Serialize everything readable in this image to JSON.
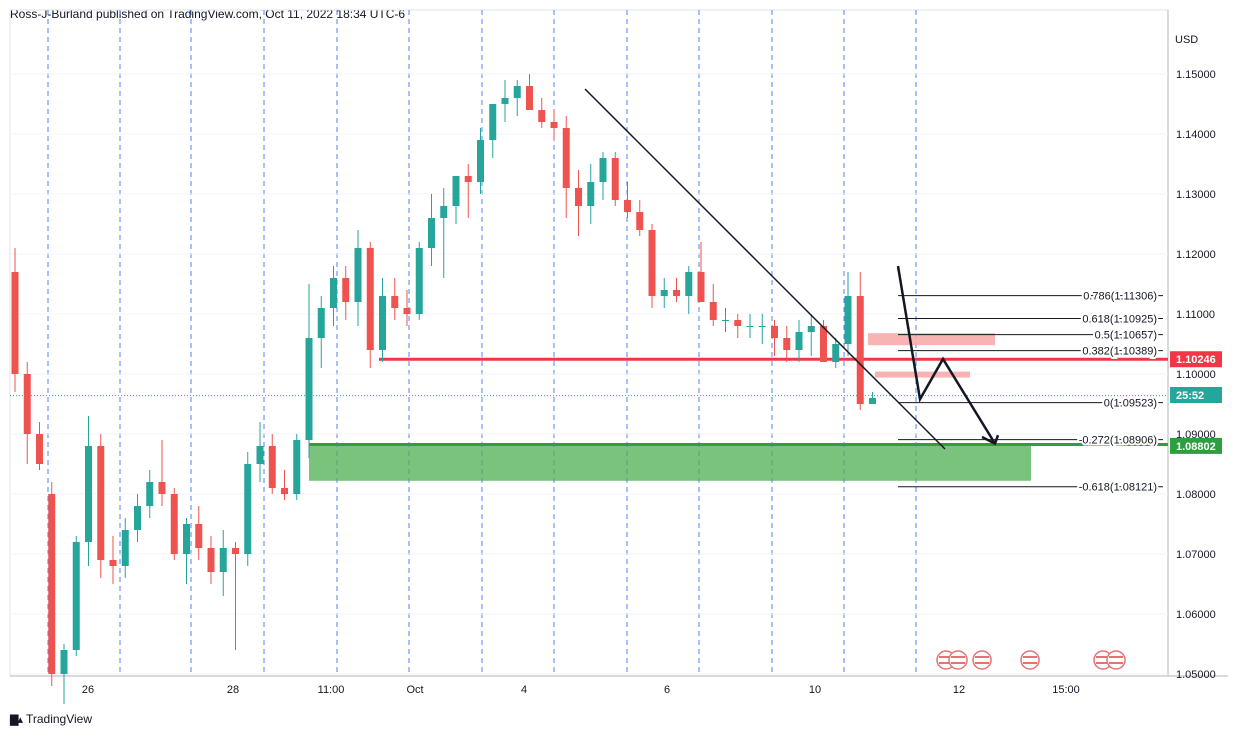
{
  "header": {
    "title": "Ross-J-Burland published on TradingView.com, Oct 11, 2022 18:34 UTC-6"
  },
  "footer": {
    "brand": "TradingView"
  },
  "colors": {
    "up": "#26a69a",
    "down": "#ef5350",
    "support": "#4caf50",
    "resistance": "#f23645",
    "grid": "#2962ff"
  },
  "chart_data": {
    "type": "candlestick",
    "symbol_unit": "USD",
    "ylim": [
      1.05,
      1.155
    ],
    "y_ticks": [
      "1.15000",
      "1.14000",
      "1.13000",
      "1.12000",
      "1.11000",
      "1.10000",
      "1.09000",
      "1.08000",
      "1.07000",
      "1.06000",
      "1.05000"
    ],
    "x_ticks": [
      "26",
      "28",
      "11:00",
      "Oct",
      "4",
      "6",
      "10",
      "12",
      "15:00"
    ],
    "price_labels": [
      {
        "text": "1.10246",
        "value": 1.10246,
        "color": "#f23645"
      },
      {
        "text": "25:52",
        "value": 1.0965,
        "color": "#26a69a"
      },
      {
        "text": "1.08802",
        "value": 1.08802,
        "color": "#2e9e3e"
      }
    ],
    "fib_levels": [
      {
        "label": "0.786(1.11306)",
        "value": 1.11306
      },
      {
        "label": "0.618(1.10925)",
        "value": 1.10925
      },
      {
        "label": "0.5(1.10657)",
        "value": 1.10657
      },
      {
        "label": "0.382(1.10389)",
        "value": 1.10389
      },
      {
        "label": "0(1.09523)",
        "value": 1.09523
      },
      {
        "label": "-0.272(1.08906)",
        "value": 1.08906
      },
      {
        "label": "-0.618(1.08121)",
        "value": 1.08121
      }
    ],
    "support_zone": [
      1.0822,
      1.0882
    ],
    "resistance_level": 1.10246,
    "candles": [
      [
        1.117,
        1.121,
        1.097,
        1.1
      ],
      [
        1.1,
        1.102,
        1.085,
        1.09
      ],
      [
        1.09,
        1.092,
        1.084,
        1.085
      ],
      [
        1.08,
        1.082,
        1.048,
        1.05
      ],
      [
        1.05,
        1.055,
        1.045,
        1.054
      ],
      [
        1.054,
        1.073,
        1.053,
        1.072
      ],
      [
        1.072,
        1.093,
        1.068,
        1.088
      ],
      [
        1.088,
        1.09,
        1.066,
        1.069
      ],
      [
        1.069,
        1.073,
        1.065,
        1.068
      ],
      [
        1.068,
        1.076,
        1.066,
        1.074
      ],
      [
        1.074,
        1.08,
        1.072,
        1.078
      ],
      [
        1.078,
        1.084,
        1.076,
        1.082
      ],
      [
        1.082,
        1.089,
        1.078,
        1.08
      ],
      [
        1.08,
        1.081,
        1.069,
        1.07
      ],
      [
        1.07,
        1.076,
        1.065,
        1.075
      ],
      [
        1.075,
        1.078,
        1.069,
        1.071
      ],
      [
        1.071,
        1.073,
        1.065,
        1.067
      ],
      [
        1.067,
        1.074,
        1.063,
        1.071
      ],
      [
        1.071,
        1.072,
        1.054,
        1.07
      ],
      [
        1.07,
        1.087,
        1.068,
        1.085
      ],
      [
        1.085,
        1.092,
        1.082,
        1.088
      ],
      [
        1.088,
        1.09,
        1.08,
        1.081
      ],
      [
        1.081,
        1.084,
        1.079,
        1.08
      ],
      [
        1.08,
        1.09,
        1.079,
        1.089
      ],
      [
        1.089,
        1.115,
        1.086,
        1.106
      ],
      [
        1.106,
        1.113,
        1.101,
        1.111
      ],
      [
        1.111,
        1.118,
        1.108,
        1.116
      ],
      [
        1.116,
        1.118,
        1.109,
        1.112
      ],
      [
        1.112,
        1.124,
        1.108,
        1.121
      ],
      [
        1.121,
        1.122,
        1.101,
        1.104
      ],
      [
        1.104,
        1.116,
        1.102,
        1.113
      ],
      [
        1.113,
        1.116,
        1.109,
        1.111
      ],
      [
        1.111,
        1.114,
        1.108,
        1.11
      ],
      [
        1.11,
        1.122,
        1.109,
        1.121
      ],
      [
        1.121,
        1.13,
        1.118,
        1.126
      ],
      [
        1.126,
        1.131,
        1.116,
        1.128
      ],
      [
        1.128,
        1.133,
        1.125,
        1.133
      ],
      [
        1.133,
        1.135,
        1.126,
        1.132
      ],
      [
        1.132,
        1.141,
        1.13,
        1.139
      ],
      [
        1.139,
        1.145,
        1.136,
        1.145
      ],
      [
        1.145,
        1.149,
        1.142,
        1.146
      ],
      [
        1.146,
        1.149,
        1.143,
        1.148
      ],
      [
        1.148,
        1.15,
        1.144,
        1.144
      ],
      [
        1.144,
        1.146,
        1.141,
        1.142
      ],
      [
        1.142,
        1.144,
        1.139,
        1.141
      ],
      [
        1.141,
        1.143,
        1.126,
        1.131
      ],
      [
        1.131,
        1.134,
        1.123,
        1.128
      ],
      [
        1.128,
        1.135,
        1.125,
        1.132
      ],
      [
        1.132,
        1.137,
        1.129,
        1.136
      ],
      [
        1.136,
        1.137,
        1.128,
        1.129
      ],
      [
        1.129,
        1.132,
        1.126,
        1.127
      ],
      [
        1.127,
        1.129,
        1.123,
        1.124
      ],
      [
        1.124,
        1.125,
        1.111,
        1.113
      ],
      [
        1.113,
        1.116,
        1.111,
        1.114
      ],
      [
        1.114,
        1.116,
        1.112,
        1.113
      ],
      [
        1.113,
        1.118,
        1.11,
        1.117
      ],
      [
        1.117,
        1.122,
        1.112,
        1.112
      ],
      [
        1.112,
        1.115,
        1.108,
        1.109
      ],
      [
        1.109,
        1.111,
        1.107,
        1.109
      ],
      [
        1.109,
        1.11,
        1.106,
        1.108
      ],
      [
        1.108,
        1.11,
        1.106,
        1.108
      ],
      [
        1.108,
        1.11,
        1.105,
        1.108
      ],
      [
        1.108,
        1.109,
        1.103,
        1.106
      ],
      [
        1.106,
        1.108,
        1.102,
        1.104
      ],
      [
        1.104,
        1.109,
        1.102,
        1.107
      ],
      [
        1.107,
        1.11,
        1.103,
        1.108
      ],
      [
        1.108,
        1.109,
        1.102,
        1.102
      ],
      [
        1.102,
        1.106,
        1.101,
        1.105
      ],
      [
        1.105,
        1.117,
        1.103,
        1.113
      ],
      [
        1.113,
        1.117,
        1.094,
        1.095
      ],
      [
        1.095,
        1.097,
        1.095,
        1.096
      ]
    ]
  }
}
